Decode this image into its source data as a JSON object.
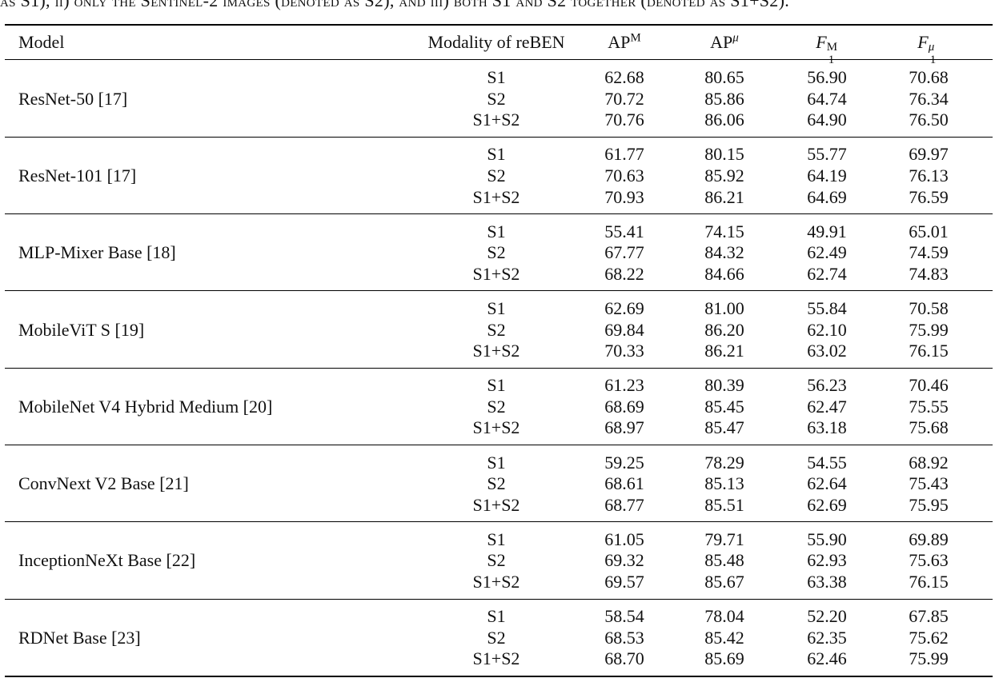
{
  "caption": "as S1), ii) only the Sentinel-2 images (denoted as S2), and iii) both S1 and S2 together (denoted as S1+S2).",
  "header": {
    "model": "Model",
    "modality": "Modality of reBEN",
    "ap_macro": "AP",
    "ap_macro_sup": "M",
    "ap_micro": "AP",
    "ap_micro_sup": "μ",
    "f1_macro": "F",
    "f1_macro_sub": "1",
    "f1_macro_sup": "M",
    "f1_micro": "F",
    "f1_micro_sub": "1",
    "f1_micro_sup": "μ"
  },
  "rows": [
    {
      "model": "ResNet-50 [17]",
      "entries": [
        {
          "modality": "S1",
          "ap_m": "62.68",
          "ap_u": "80.65",
          "f1_m": "56.90",
          "f1_u": "70.68"
        },
        {
          "modality": "S2",
          "ap_m": "70.72",
          "ap_u": "85.86",
          "f1_m": "64.74",
          "f1_u": "76.34"
        },
        {
          "modality": "S1+S2",
          "ap_m": "70.76",
          "ap_u": "86.06",
          "f1_m": "64.90",
          "f1_u": "76.50"
        }
      ]
    },
    {
      "model": "ResNet-101 [17]",
      "entries": [
        {
          "modality": "S1",
          "ap_m": "61.77",
          "ap_u": "80.15",
          "f1_m": "55.77",
          "f1_u": "69.97"
        },
        {
          "modality": "S2",
          "ap_m": "70.63",
          "ap_u": "85.92",
          "f1_m": "64.19",
          "f1_u": "76.13"
        },
        {
          "modality": "S1+S2",
          "ap_m": "70.93",
          "ap_u": "86.21",
          "f1_m": "64.69",
          "f1_u": "76.59"
        }
      ]
    },
    {
      "model": "MLP-Mixer Base [18]",
      "entries": [
        {
          "modality": "S1",
          "ap_m": "55.41",
          "ap_u": "74.15",
          "f1_m": "49.91",
          "f1_u": "65.01"
        },
        {
          "modality": "S2",
          "ap_m": "67.77",
          "ap_u": "84.32",
          "f1_m": "62.49",
          "f1_u": "74.59"
        },
        {
          "modality": "S1+S2",
          "ap_m": "68.22",
          "ap_u": "84.66",
          "f1_m": "62.74",
          "f1_u": "74.83"
        }
      ]
    },
    {
      "model": "MobileViT S [19]",
      "entries": [
        {
          "modality": "S1",
          "ap_m": "62.69",
          "ap_u": "81.00",
          "f1_m": "55.84",
          "f1_u": "70.58"
        },
        {
          "modality": "S2",
          "ap_m": "69.84",
          "ap_u": "86.20",
          "f1_m": "62.10",
          "f1_u": "75.99"
        },
        {
          "modality": "S1+S2",
          "ap_m": "70.33",
          "ap_u": "86.21",
          "f1_m": "63.02",
          "f1_u": "76.15"
        }
      ]
    },
    {
      "model": "MobileNet V4 Hybrid Medium [20]",
      "entries": [
        {
          "modality": "S1",
          "ap_m": "61.23",
          "ap_u": "80.39",
          "f1_m": "56.23",
          "f1_u": "70.46"
        },
        {
          "modality": "S2",
          "ap_m": "68.69",
          "ap_u": "85.45",
          "f1_m": "62.47",
          "f1_u": "75.55"
        },
        {
          "modality": "S1+S2",
          "ap_m": "68.97",
          "ap_u": "85.47",
          "f1_m": "63.18",
          "f1_u": "75.68"
        }
      ]
    },
    {
      "model": "ConvNext V2 Base [21]",
      "entries": [
        {
          "modality": "S1",
          "ap_m": "59.25",
          "ap_u": "78.29",
          "f1_m": "54.55",
          "f1_u": "68.92"
        },
        {
          "modality": "S2",
          "ap_m": "68.61",
          "ap_u": "85.13",
          "f1_m": "62.64",
          "f1_u": "75.43"
        },
        {
          "modality": "S1+S2",
          "ap_m": "68.77",
          "ap_u": "85.51",
          "f1_m": "62.69",
          "f1_u": "75.95"
        }
      ]
    },
    {
      "model": "InceptionNeXt Base [22]",
      "entries": [
        {
          "modality": "S1",
          "ap_m": "61.05",
          "ap_u": "79.71",
          "f1_m": "55.90",
          "f1_u": "69.89"
        },
        {
          "modality": "S2",
          "ap_m": "69.32",
          "ap_u": "85.48",
          "f1_m": "62.93",
          "f1_u": "75.63"
        },
        {
          "modality": "S1+S2",
          "ap_m": "69.57",
          "ap_u": "85.67",
          "f1_m": "63.38",
          "f1_u": "76.15"
        }
      ]
    },
    {
      "model": "RDNet Base [23]",
      "entries": [
        {
          "modality": "S1",
          "ap_m": "58.54",
          "ap_u": "78.04",
          "f1_m": "52.20",
          "f1_u": "67.85"
        },
        {
          "modality": "S2",
          "ap_m": "68.53",
          "ap_u": "85.42",
          "f1_m": "62.35",
          "f1_u": "75.62"
        },
        {
          "modality": "S1+S2",
          "ap_m": "68.70",
          "ap_u": "85.69",
          "f1_m": "62.46",
          "f1_u": "75.99"
        }
      ]
    }
  ]
}
